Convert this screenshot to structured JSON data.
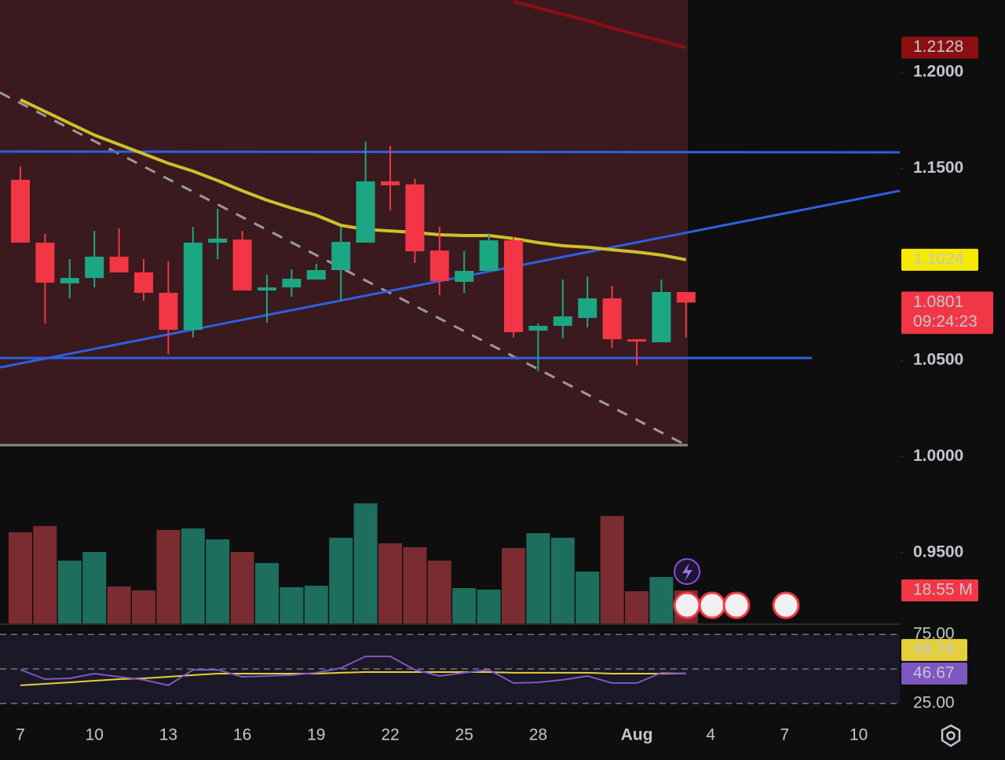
{
  "chart_data": [
    {
      "type": "candlestick",
      "categories": [
        "7",
        null,
        null,
        "10",
        null,
        null,
        "13",
        null,
        null,
        "16",
        null,
        null,
        "19",
        null,
        null,
        "22",
        null,
        null,
        "25",
        null,
        null,
        "28",
        null,
        null,
        null,
        "Aug",
        null,
        null,
        "4",
        null,
        null,
        "7",
        null,
        null,
        "10"
      ],
      "open": [
        1.144,
        1.1113,
        1.0901,
        1.0929,
        1.104,
        1.0958,
        1.0852,
        1.0659,
        1.1113,
        1.1129,
        1.0864,
        1.088,
        1.0921,
        1.097,
        1.1113,
        1.1432,
        1.1416,
        1.1072,
        1.0909,
        1.0966,
        1.1125,
        1.0655,
        1.068,
        1.0721,
        1.0823,
        1.061,
        1.0594,
        1.0856,
        null,
        null,
        null,
        null,
        null,
        null,
        null
      ],
      "high": [
        1.151,
        1.1158,
        1.1027,
        1.1174,
        1.1187,
        1.1027,
        1.1015,
        1.1195,
        1.1289,
        1.1174,
        1.0946,
        1.0974,
        1.1003,
        1.1195,
        1.164,
        1.1616,
        1.1444,
        1.1195,
        1.1068,
        1.1162,
        1.1142,
        1.0692,
        1.0921,
        1.0937,
        1.0888,
        1.061,
        1.0921,
        1.0856,
        null,
        null,
        null,
        null,
        null,
        null,
        null
      ],
      "low": [
        1.1113,
        1.0692,
        1.0823,
        1.088,
        1.0958,
        1.0811,
        1.0533,
        1.0619,
        1.1027,
        1.0864,
        1.0696,
        1.0831,
        1.0921,
        1.0811,
        1.1113,
        1.1281,
        1.1007,
        1.0839,
        1.0852,
        1.0966,
        1.0619,
        1.0443,
        1.0615,
        1.0672,
        1.0565,
        1.0476,
        1.0594,
        1.0619,
        null,
        null,
        null,
        null,
        null,
        null,
        null
      ],
      "close": [
        1.1113,
        1.0905,
        1.0929,
        1.104,
        1.0958,
        1.0852,
        1.0659,
        1.1113,
        1.1134,
        1.0864,
        1.088,
        1.0925,
        1.097,
        1.1117,
        1.1432,
        1.1411,
        1.1068,
        1.0913,
        1.0966,
        1.1125,
        1.0647,
        1.068,
        1.0729,
        1.0823,
        1.061,
        1.0598,
        1.0856,
        1.0801,
        null,
        null,
        null,
        null,
        null,
        null,
        null
      ],
      "countdown": "09:24:23",
      "volume": {
        "values": [
          50.5,
          53.9,
          34.9,
          39.7,
          20.7,
          18.6,
          51.8,
          52.6,
          46.6,
          39.7,
          33.6,
          20.3,
          21.1,
          47.5,
          66.4,
          44.4,
          42.3,
          34.9,
          19.8,
          19.0,
          41.8,
          50.0,
          47.5,
          28.9,
          59.5,
          18.1,
          25.9,
          18.55,
          null,
          null,
          null,
          null,
          null,
          null,
          null
        ],
        "value_labels": [
          null,
          null,
          null,
          null,
          null,
          null,
          null,
          null,
          null,
          null,
          null,
          null,
          null,
          null,
          null,
          null,
          null,
          null,
          null,
          null,
          null,
          null,
          null,
          null,
          null,
          null,
          null,
          "18.55 M",
          null,
          null,
          null,
          null,
          null,
          null,
          null
        ],
        "up_color": "#1e6e5d",
        "down_color": "#7b2c30",
        "ylim": [
          0,
          343
        ]
      },
      "ma": {
        "values": [
          1.1857,
          1.1796,
          1.1734,
          1.1673,
          1.1624,
          1.1575,
          1.1526,
          1.1485,
          1.1436,
          1.1383,
          1.1334,
          1.1293,
          1.1256,
          1.1203,
          1.1182,
          1.1174,
          1.1166,
          1.1154,
          1.115,
          1.115,
          1.1134,
          1.1113,
          1.1097,
          1.1089,
          1.1076,
          1.1064,
          1.1048,
          1.1024,
          null,
          null,
          null,
          null,
          null,
          null,
          null
        ],
        "color": "#cfc02a"
      },
      "long_ma": {
        "values": [
          null,
          null,
          null,
          null,
          null,
          null,
          null,
          null,
          null,
          null,
          null,
          null,
          null,
          null,
          null,
          null,
          null,
          null,
          null,
          null,
          1.2368,
          1.2335,
          1.2302,
          1.227,
          1.2229,
          1.2196,
          1.2163,
          1.2128,
          null,
          null,
          null,
          null,
          null,
          null,
          null
        ],
        "color": "#8b0f10"
      },
      "up_color": "#1ba784",
      "down_color": "#f23645",
      "ylim": [
        0.9127,
        1.2376
      ],
      "yticks": [
        {
          "value": 1.2,
          "label": "1.2000"
        },
        {
          "value": 1.15,
          "label": "1.1500"
        },
        {
          "value": 1.05,
          "label": "1.0500"
        },
        {
          "value": 1.0,
          "label": "1.0000"
        },
        {
          "value": 0.95,
          "label": "0.9500"
        }
      ]
    },
    {
      "type": "line",
      "values": [
        49.4,
        42.6,
        43.2,
        46.6,
        44.3,
        42.1,
        38.1,
        49.4,
        49.4,
        44.3,
        44.9,
        45.5,
        47.2,
        50.6,
        59.1,
        59.1,
        49.4,
        44.9,
        47.2,
        49.4,
        39.8,
        40.3,
        42.1,
        44.9,
        39.8,
        39.8,
        47.2,
        46.67
      ],
      "color": "#7e57c2",
      "ma": {
        "values": [
          38.1,
          39.2,
          40.3,
          41.5,
          42.6,
          43.2,
          44.3,
          45.5,
          46.6,
          46.6,
          46.6,
          46.6,
          46.6,
          47.2,
          47.7,
          47.7,
          47.7,
          47.7,
          47.7,
          47.7,
          47.2,
          47.2,
          47.2,
          47.2,
          46.6,
          46.6,
          46.6,
          46.74
        ],
        "color": "#e5cf3a"
      },
      "ylim": [
        20,
        80
      ],
      "yticks": [
        {
          "value": 75,
          "label": "75.00"
        },
        {
          "value": 50,
          "label": null
        },
        {
          "value": 25,
          "label": "25.00"
        }
      ]
    }
  ]
}
